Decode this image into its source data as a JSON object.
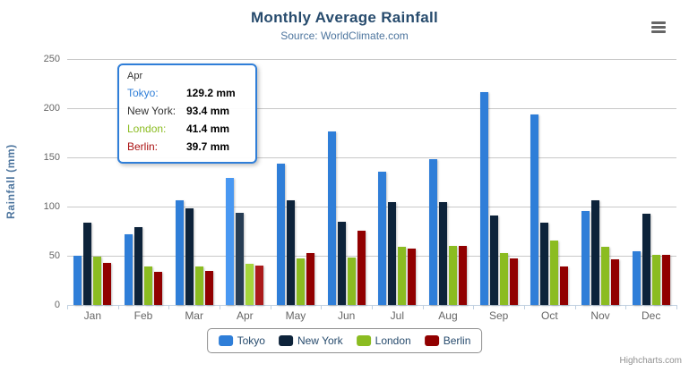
{
  "chart_data": {
    "type": "bar",
    "title": "Monthly Average Rainfall",
    "subtitle": "Source: WorldClimate.com",
    "xlabel": "",
    "ylabel": "Rainfall (mm)",
    "ylim": [
      0,
      250
    ],
    "y_ticks": [
      0,
      50,
      100,
      150,
      200,
      250
    ],
    "grid": true,
    "legend_position": "bottom",
    "categories": [
      "Jan",
      "Feb",
      "Mar",
      "Apr",
      "May",
      "Jun",
      "Jul",
      "Aug",
      "Sep",
      "Oct",
      "Nov",
      "Dec"
    ],
    "series": [
      {
        "name": "Tokyo",
        "color": "#2f7ed8",
        "values": [
          49.9,
          71.5,
          106.4,
          129.2,
          144.0,
          176.0,
          135.6,
          148.5,
          216.4,
          194.1,
          95.6,
          54.4
        ]
      },
      {
        "name": "New York",
        "color": "#0d233a",
        "values": [
          83.6,
          78.8,
          98.5,
          93.4,
          106.0,
          84.5,
          105.0,
          104.3,
          91.2,
          83.5,
          106.6,
          92.3
        ]
      },
      {
        "name": "London",
        "color": "#8bbc21",
        "values": [
          48.9,
          38.8,
          39.3,
          41.4,
          47.0,
          48.3,
          59.0,
          59.6,
          52.4,
          65.2,
          59.3,
          51.2
        ]
      },
      {
        "name": "Berlin",
        "color": "#910000",
        "values": [
          42.4,
          33.2,
          34.5,
          39.7,
          52.6,
          75.5,
          57.4,
          60.4,
          47.6,
          39.1,
          46.8,
          51.1
        ]
      }
    ]
  },
  "tooltip": {
    "month": "Apr",
    "month_index": 3,
    "value_suffix": " mm",
    "rows": [
      {
        "name": "Tokyo:",
        "value": "129.2 mm",
        "color": "#2f7ed8"
      },
      {
        "name": "New York:",
        "value": "93.4 mm",
        "color": "#333333"
      },
      {
        "name": "London:",
        "value": "41.4 mm",
        "color": "#8bbc21"
      },
      {
        "name": "Berlin:",
        "value": "39.7 mm",
        "color": "#aa1111"
      }
    ]
  },
  "credits": {
    "text": "Highcharts.com"
  },
  "context_menu": {
    "icon": "hamburger-menu-icon"
  },
  "colors": {
    "title": "#274b6d",
    "subtitle": "#4d759e",
    "axis_title": "#4d759e",
    "axis_label": "#666666",
    "axis_line": "#c0d0e0",
    "gridline": "#c8c8c8",
    "legend_border": "#909090",
    "legend_text": "#274b6d",
    "tooltip_border": "#2f7ed8"
  }
}
